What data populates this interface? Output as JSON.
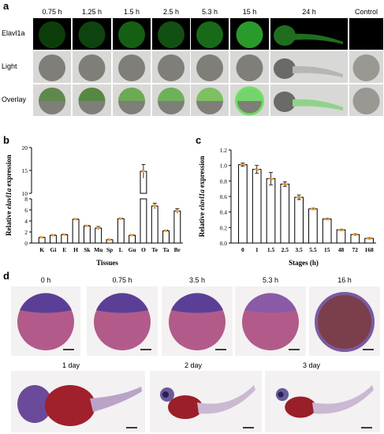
{
  "panel_a": {
    "letter": "a",
    "timepoints": [
      "0.75 h",
      "1.25 h",
      "1.5 h",
      "2.5 h",
      "5.3 h",
      "15 h",
      "24 h",
      "Control"
    ],
    "rows": [
      "Elavl1a",
      "Light",
      "Overlay"
    ]
  },
  "panel_b": {
    "letter": "b",
    "chart_data": {
      "type": "bar",
      "categories": [
        "K",
        "Gi",
        "E",
        "H",
        "Sk",
        "Mu",
        "Sp",
        "L",
        "Gu",
        "O",
        "Te",
        "Ta",
        "Br"
      ],
      "values": [
        1.0,
        1.4,
        1.5,
        4.3,
        3.1,
        2.7,
        0.6,
        4.4,
        1.4,
        14.8,
        6.7,
        2.2,
        5.8
      ],
      "errors": [
        0.1,
        0.1,
        0.1,
        0.1,
        0.1,
        0.3,
        0.05,
        0.1,
        0.1,
        1.5,
        0.5,
        0.15,
        0.4
      ],
      "xlabel": "Tissues",
      "ylabel": "Relative elavl1a expression",
      "ylabel_parts": [
        "Relative ",
        "elavl1a",
        " expression"
      ],
      "axis_break": true,
      "lower_range": [
        0,
        8
      ],
      "upper_range": [
        10,
        20
      ],
      "yticks_lower": [
        "0",
        "2",
        "4",
        "6",
        "8"
      ],
      "yticks_upper": [
        "10",
        "15",
        "20"
      ]
    }
  },
  "panel_c": {
    "letter": "c",
    "chart_data": {
      "type": "bar",
      "categories": [
        "0",
        "1",
        "1.5",
        "2.5",
        "3.5",
        "5.5",
        "15",
        "48",
        "72",
        "168"
      ],
      "values": [
        1.01,
        0.95,
        0.83,
        0.76,
        0.59,
        0.44,
        0.31,
        0.17,
        0.11,
        0.06
      ],
      "errors": [
        0.02,
        0.05,
        0.08,
        0.03,
        0.03,
        0.01,
        0.01,
        0.01,
        0.01,
        0.01
      ],
      "xlabel": "Stages (h)",
      "ylabel": "Relative elavl1a expression",
      "ylabel_parts": [
        "Relative ",
        "elavl1a",
        " expression"
      ],
      "ylim": [
        0,
        1.2
      ],
      "yticks": [
        "0.0",
        "0.2",
        "0.4",
        "0.6",
        "0.8",
        "1.0",
        "1.2"
      ]
    }
  },
  "panel_d": {
    "letter": "d",
    "top_labels": [
      "0 h",
      "0.75 h",
      "3.5 h",
      "5.3 h",
      "16 h"
    ],
    "bottom_labels": [
      "1 day",
      "2 day",
      "3 day"
    ]
  }
}
